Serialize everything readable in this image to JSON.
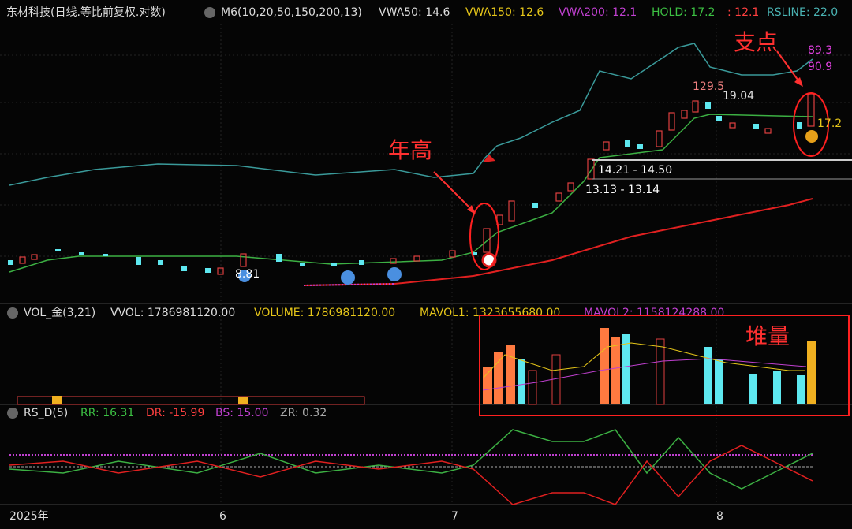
{
  "header": {
    "title": "东材科技(日线.等比前复权.对数)",
    "indicator": "M6(10,20,50,150,200,13)",
    "vwa50": "VWA50: 14.6",
    "vwa150": "VWA150: 12.6",
    "vwa200": "VWA200: 12.1",
    "hold": "HOLD: 17.2",
    "hold2": ": 12.1",
    "rsline": "RSLINE: 22.0"
  },
  "price_panel": {
    "pivot": "支点",
    "year_high": "年高",
    "high": "129.5",
    "hold_label": "19.04",
    "rs1": "89.3",
    "rs2": "90.9",
    "hold_value": "17.2",
    "zone1": "14.21 - 14.50",
    "zone2": "13.13 - 13.14",
    "low": "8.81"
  },
  "volume_panel": {
    "name": "VOL_金(3,21)",
    "vvol": "VVOL: 1786981120.00",
    "volume": "VOLUME: 1786981120.00",
    "mavol1": "MAVOL1: 1323655680.00",
    "mavol2": "MAVOL2: 1158124288.00",
    "note": "堆量"
  },
  "rs_panel": {
    "name": "RS_D(5)",
    "rr": "RR: 16.31",
    "dr": "DR: -15.99",
    "bs": "BS: 15.00",
    "zr": "ZR: 0.32"
  },
  "x_axis": [
    "2025年",
    "6",
    "7",
    "8"
  ]
}
